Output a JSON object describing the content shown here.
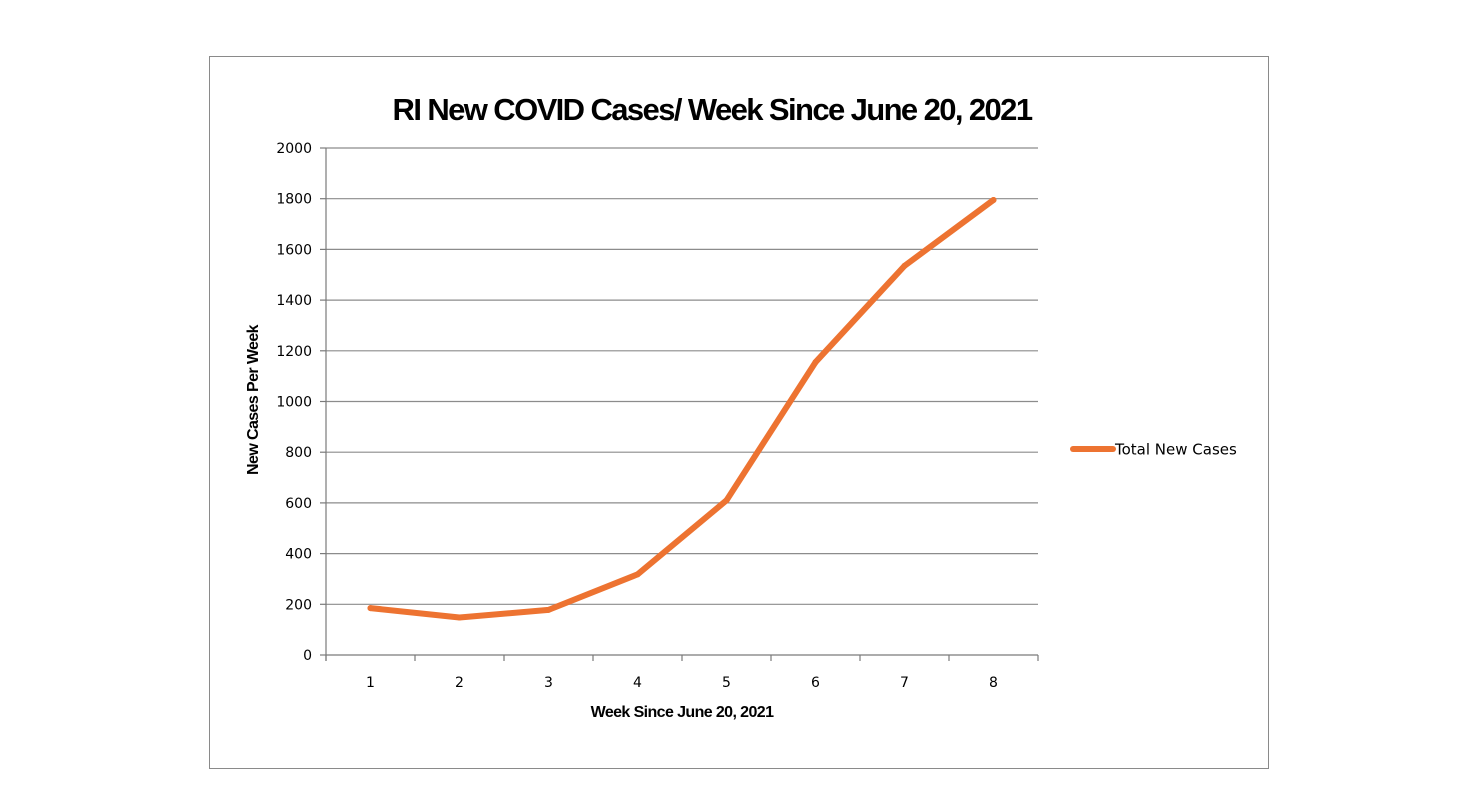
{
  "chart_data": {
    "type": "line",
    "title": "RI New COVID Cases/ Week Since June 20, 2021",
    "xlabel": "Week Since June 20, 2021",
    "ylabel": "New Cases Per Week",
    "categories": [
      "1",
      "2",
      "3",
      "4",
      "5",
      "6",
      "7",
      "8"
    ],
    "ylim": [
      0,
      2000
    ],
    "yticks": [
      0,
      200,
      400,
      600,
      800,
      1000,
      1200,
      1400,
      1600,
      1800,
      2000
    ],
    "grid": true,
    "legend_position": "right",
    "series": [
      {
        "name": "Total New Cases",
        "color": "#ED7331",
        "values": [
          185,
          148,
          178,
          318,
          610,
          1155,
          1535,
          1795
        ]
      }
    ]
  }
}
